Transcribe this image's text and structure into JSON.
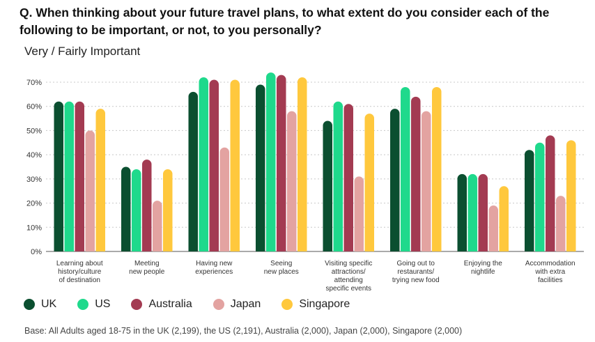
{
  "question": "Q. When thinking about your future travel plans, to what extent do you consider each of the following to be important, or not, to you personally?",
  "chart_data": {
    "type": "bar",
    "title": "Very / Fairly Important",
    "ylim": [
      0,
      70
    ],
    "yticks": [
      0,
      10,
      20,
      30,
      40,
      50,
      60,
      70
    ],
    "ytick_suffix": "%",
    "grid": true,
    "legend_position": "bottom-left",
    "categories": [
      [
        "Learning about",
        "history/culture",
        "of destination"
      ],
      [
        "Meeting",
        "new people"
      ],
      [
        "Having new",
        "experiences"
      ],
      [
        "Seeing",
        "new places"
      ],
      [
        "Visiting specific",
        "attractions/",
        "attending",
        "specific events"
      ],
      [
        "Going out to",
        "restaurants/",
        "trying new food"
      ],
      [
        "Enjoying the",
        "nightlife"
      ],
      [
        "Accommodation",
        "with extra",
        "facilities"
      ]
    ],
    "series": [
      {
        "name": "UK",
        "color": "#0b4f30",
        "values": [
          62,
          35,
          66,
          69,
          54,
          59,
          32,
          42
        ]
      },
      {
        "name": "US",
        "color": "#1fd98c",
        "values": [
          62,
          34,
          72,
          74,
          62,
          68,
          32,
          45
        ]
      },
      {
        "name": "Australia",
        "color": "#a33b52",
        "values": [
          62,
          38,
          71,
          73,
          61,
          64,
          32,
          48
        ]
      },
      {
        "name": "Japan",
        "color": "#e3a3a1",
        "values": [
          50,
          21,
          43,
          58,
          31,
          58,
          19,
          23
        ]
      },
      {
        "name": "Singapore",
        "color": "#ffc83d",
        "values": [
          59,
          34,
          71,
          72,
          57,
          68,
          27,
          46
        ]
      }
    ]
  },
  "footnote": "Base: All Adults aged 18-75 in the UK (2,199), the US (2,191), Australia (2,000), Japan (2,000), Singapore (2,000)"
}
